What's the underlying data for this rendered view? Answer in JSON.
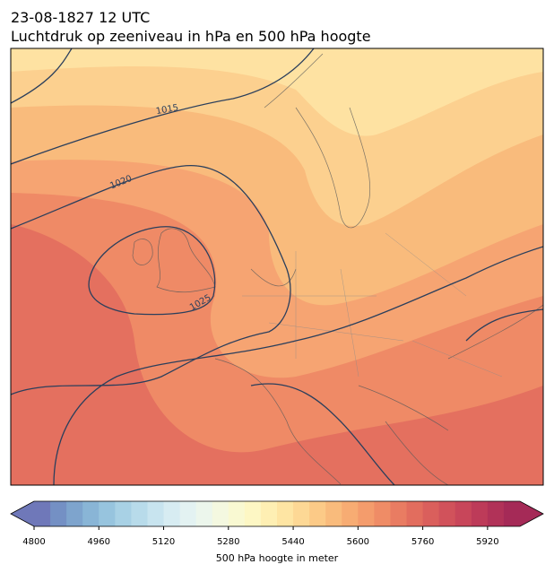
{
  "title": [
    "23-08-1827 12 UTC",
    "Luchtdruk op zeeniveau in hPa en 500 hPa hoogte"
  ],
  "map": {
    "contour_labels": [
      1015,
      1020,
      1025
    ]
  },
  "colorbar": {
    "label": "500 hPa hoogte in meter",
    "lim": [
      4800,
      6000
    ],
    "ticks": [
      4800,
      4960,
      5120,
      5280,
      5440,
      5600,
      5760,
      5920
    ],
    "colors": [
      "#6f78b9",
      "#7490c4",
      "#7ea4cd",
      "#89b5d6",
      "#97c4de",
      "#a8d1e5",
      "#b8dbea",
      "#c8e4ef",
      "#d7ecf2",
      "#e3f2f2",
      "#ecf6ec",
      "#f4f8e0",
      "#f9f9d2",
      "#fdf7c4",
      "#feefb3",
      "#fee5a3",
      "#fdd895",
      "#fcca87",
      "#f9bb7c",
      "#f7ac73",
      "#f49c6c",
      "#ef8c66",
      "#e97c62",
      "#e26d5e",
      "#da5f5c",
      "#d1525b",
      "#c8465a",
      "#bd3b59",
      "#b13258",
      "#a52a57"
    ]
  }
}
